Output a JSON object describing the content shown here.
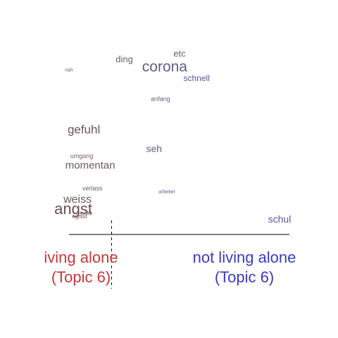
{
  "chart_data": {
    "type": "scatter",
    "title": "",
    "xlabel": "",
    "ylabel": "",
    "left_group": {
      "line1": "iving alone",
      "line2": "(Topic 6)",
      "color": "#c0393b"
    },
    "right_group": {
      "line1": "not living alone",
      "line2": "(Topic 6)",
      "color": "#3b3bbf"
    },
    "words": [
      {
        "text": "etc",
        "x": 0.52,
        "y": 0.92,
        "size": 13,
        "color": "#64607a"
      },
      {
        "text": "ding",
        "x": 0.26,
        "y": 0.89,
        "size": 13,
        "color": "#6b6060"
      },
      {
        "text": "corona",
        "x": 0.45,
        "y": 0.85,
        "size": 21,
        "color": "#5f5f86"
      },
      {
        "text": "nah",
        "x": 0.0,
        "y": 0.83,
        "size": 7,
        "color": "#7a6060"
      },
      {
        "text": "schnell",
        "x": 0.6,
        "y": 0.79,
        "size": 12,
        "color": "#55559a"
      },
      {
        "text": "anfang",
        "x": 0.43,
        "y": 0.68,
        "size": 9,
        "color": "#5f5f86"
      },
      {
        "text": "gefuhl",
        "x": 0.07,
        "y": 0.52,
        "size": 17,
        "color": "#6b5555"
      },
      {
        "text": "seh",
        "x": 0.4,
        "y": 0.42,
        "size": 14,
        "color": "#605f7a"
      },
      {
        "text": "umgang",
        "x": 0.06,
        "y": 0.38,
        "size": 9,
        "color": "#7a6060"
      },
      {
        "text": "momentan",
        "x": 0.1,
        "y": 0.33,
        "size": 15,
        "color": "#6b5a5a"
      },
      {
        "text": "verlass",
        "x": 0.11,
        "y": 0.21,
        "size": 9,
        "color": "#6b5a5a"
      },
      {
        "text": "arbeitet",
        "x": 0.46,
        "y": 0.19,
        "size": 7,
        "color": "#5f5f86"
      },
      {
        "text": "weiss",
        "x": 0.04,
        "y": 0.15,
        "size": 16,
        "color": "#6b5a5a"
      },
      {
        "text": "angst",
        "x": 0.02,
        "y": 0.1,
        "size": 22,
        "color": "#6b4f4f"
      },
      {
        "text": "denkt",
        "x": 0.07,
        "y": 0.08,
        "size": 9,
        "color": "#7a6060"
      },
      {
        "text": "egoist",
        "x": 0.05,
        "y": 0.06,
        "size": 8,
        "color": "#7a6060"
      },
      {
        "text": "schul",
        "x": 0.99,
        "y": 0.05,
        "size": 14,
        "color": "#5555aa"
      }
    ],
    "reference_x": 0.2
  }
}
